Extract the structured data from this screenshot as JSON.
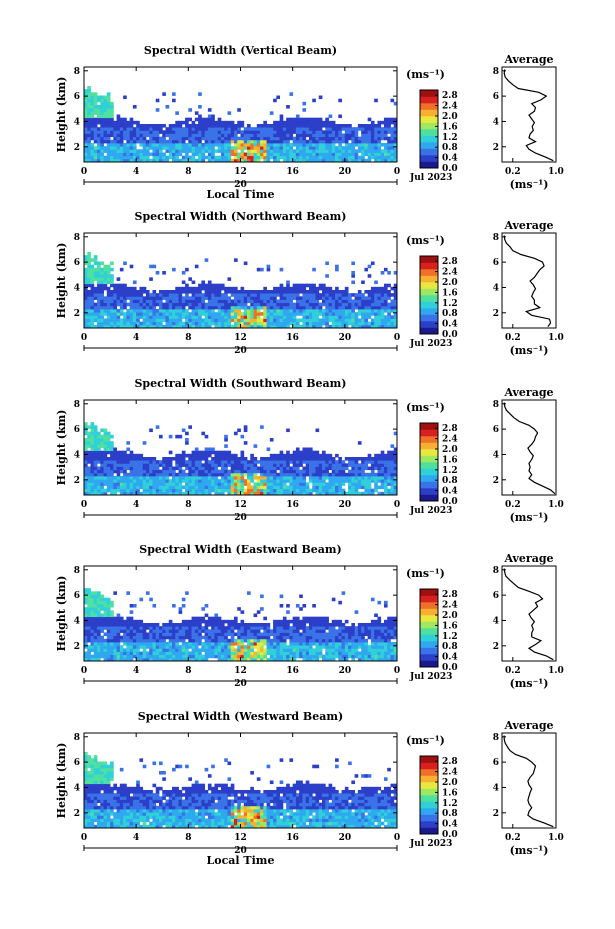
{
  "chart_data": [
    {
      "type": "heatmap",
      "title": "Spectral Width (Vertical Beam)",
      "ylabel": "Height (km)",
      "xlabel": "Local Time",
      "xticks": [
        "0",
        "4",
        "8",
        "12",
        "16",
        "20",
        "0"
      ],
      "xlim": [
        0,
        24
      ],
      "yticks": [
        "2",
        "4",
        "6",
        "8"
      ],
      "ylim": [
        0.8,
        8.3
      ],
      "date_day": "20",
      "date_label": "Jul 2023",
      "colorbar": {
        "unit": "(ms⁻¹)",
        "ticks": [
          "2.8",
          "2.4",
          "2.0",
          "1.6",
          "1.2",
          "0.8",
          "0.4",
          "0.0"
        ],
        "range": [
          0.0,
          3.0
        ]
      },
      "profile": {
        "title": "Average",
        "xlabel": "(ms⁻¹)",
        "xticks": [
          "0.2",
          "1.0"
        ],
        "xlim": [
          0.0,
          1.0
        ],
        "yticks": [
          "2",
          "4",
          "6",
          "8"
        ],
        "ylim": [
          0.8,
          8.3
        ],
        "height": [
          0.9,
          1.2,
          1.5,
          1.8,
          2.1,
          2.4,
          2.7,
          3.0,
          3.3,
          3.6,
          3.9,
          4.2,
          4.5,
          4.8,
          5.1,
          5.4,
          5.7,
          6.0,
          6.3,
          6.6,
          6.9,
          7.2,
          7.5,
          7.8,
          8.1
        ],
        "values": [
          0.95,
          0.8,
          0.62,
          0.5,
          0.45,
          0.62,
          0.5,
          0.52,
          0.58,
          0.56,
          0.6,
          0.55,
          0.5,
          0.6,
          0.62,
          0.55,
          0.72,
          0.82,
          0.68,
          0.3,
          0.2,
          0.12,
          0.06,
          0.04,
          0.05
        ]
      }
    },
    {
      "type": "heatmap",
      "title": "Spectral Width (Northward Beam)",
      "ylabel": "Height (km)",
      "xticks": [
        "0",
        "4",
        "8",
        "12",
        "16",
        "20",
        "0"
      ],
      "xlim": [
        0,
        24
      ],
      "yticks": [
        "2",
        "4",
        "6",
        "8"
      ],
      "ylim": [
        0.8,
        8.3
      ],
      "date_day": "20",
      "date_label": "Jul 2023",
      "colorbar": {
        "unit": "(ms⁻¹)",
        "ticks": [
          "2.8",
          "2.4",
          "2.0",
          "1.6",
          "1.2",
          "0.8",
          "0.4",
          "0.0"
        ],
        "range": [
          0.0,
          3.0
        ]
      },
      "profile": {
        "title": "Average",
        "xlabel": "(ms⁻¹)",
        "xticks": [
          "0.2",
          "1.0"
        ],
        "xlim": [
          0.0,
          1.0
        ],
        "yticks": [
          "2",
          "4",
          "6",
          "8"
        ],
        "ylim": [
          0.8,
          8.3
        ],
        "height": [
          0.9,
          1.2,
          1.5,
          1.8,
          2.1,
          2.4,
          2.7,
          3.0,
          3.3,
          3.6,
          3.9,
          4.2,
          4.5,
          4.8,
          5.1,
          5.4,
          5.7,
          6.0,
          6.3,
          6.6,
          6.9,
          7.2,
          7.5,
          7.8,
          8.1
        ],
        "values": [
          0.85,
          0.9,
          0.88,
          0.55,
          0.45,
          0.7,
          0.6,
          0.6,
          0.55,
          0.58,
          0.62,
          0.58,
          0.52,
          0.6,
          0.65,
          0.7,
          0.78,
          0.75,
          0.6,
          0.35,
          0.2,
          0.15,
          0.08,
          0.05,
          0.04
        ]
      }
    },
    {
      "type": "heatmap",
      "title": "Spectral Width (Southward Beam)",
      "ylabel": "Height (km)",
      "xticks": [
        "0",
        "4",
        "8",
        "12",
        "16",
        "20",
        "0"
      ],
      "xlim": [
        0,
        24
      ],
      "yticks": [
        "2",
        "4",
        "6",
        "8"
      ],
      "ylim": [
        0.8,
        8.3
      ],
      "date_day": "20",
      "date_label": "Jul 2023",
      "colorbar": {
        "unit": "(ms⁻¹)",
        "ticks": [
          "2.8",
          "2.4",
          "2.0",
          "1.6",
          "1.2",
          "0.8",
          "0.4",
          "0.0"
        ],
        "range": [
          0.0,
          3.0
        ]
      },
      "profile": {
        "title": "Average",
        "xlabel": "(ms⁻¹)",
        "xticks": [
          "0.2",
          "1.0"
        ],
        "xlim": [
          0.0,
          1.0
        ],
        "yticks": [
          "2",
          "4",
          "6",
          "8"
        ],
        "ylim": [
          0.8,
          8.3
        ],
        "height": [
          0.9,
          1.2,
          1.5,
          1.8,
          2.1,
          2.4,
          2.7,
          3.0,
          3.3,
          3.6,
          3.9,
          4.2,
          4.5,
          4.8,
          5.1,
          5.4,
          5.7,
          6.0,
          6.3,
          6.6,
          6.9,
          7.2,
          7.5,
          7.8,
          8.1
        ],
        "values": [
          0.98,
          0.9,
          0.75,
          0.6,
          0.5,
          0.55,
          0.5,
          0.52,
          0.5,
          0.55,
          0.58,
          0.52,
          0.48,
          0.55,
          0.6,
          0.62,
          0.66,
          0.6,
          0.5,
          0.32,
          0.22,
          0.15,
          0.08,
          0.05,
          0.04
        ]
      }
    },
    {
      "type": "heatmap",
      "title": "Spectral Width (Eastward Beam)",
      "ylabel": "Height (km)",
      "xticks": [
        "0",
        "4",
        "8",
        "12",
        "16",
        "20",
        "0"
      ],
      "xlim": [
        0,
        24
      ],
      "yticks": [
        "2",
        "4",
        "6",
        "8"
      ],
      "ylim": [
        0.8,
        8.3
      ],
      "date_day": "20",
      "date_label": "Jul 2023",
      "colorbar": {
        "unit": "(ms⁻¹)",
        "ticks": [
          "2.8",
          "2.4",
          "2.0",
          "1.6",
          "1.2",
          "0.8",
          "0.4",
          "0.0"
        ],
        "range": [
          0.0,
          3.0
        ]
      },
      "profile": {
        "title": "Average",
        "xlabel": "(ms⁻¹)",
        "xticks": [
          "0.2",
          "1.0"
        ],
        "xlim": [
          0.0,
          1.0
        ],
        "yticks": [
          "2",
          "4",
          "6",
          "8"
        ],
        "ylim": [
          0.8,
          8.3
        ],
        "height": [
          0.9,
          1.2,
          1.5,
          1.8,
          2.1,
          2.4,
          2.7,
          3.0,
          3.3,
          3.6,
          3.9,
          4.2,
          4.5,
          4.8,
          5.1,
          5.4,
          5.7,
          6.0,
          6.3,
          6.6,
          6.9,
          7.2,
          7.5,
          7.8,
          8.1
        ],
        "values": [
          0.95,
          0.82,
          0.6,
          0.5,
          0.62,
          0.72,
          0.55,
          0.55,
          0.58,
          0.55,
          0.6,
          0.54,
          0.5,
          0.58,
          0.66,
          0.62,
          0.75,
          0.68,
          0.5,
          0.3,
          0.22,
          0.14,
          0.07,
          0.05,
          0.04
        ]
      }
    },
    {
      "type": "heatmap",
      "title": "Spectral Width (Westward Beam)",
      "ylabel": "Height (km)",
      "xlabel": "Local Time",
      "xticks": [
        "0",
        "4",
        "8",
        "12",
        "16",
        "20",
        "0"
      ],
      "xlim": [
        0,
        24
      ],
      "yticks": [
        "2",
        "4",
        "6",
        "8"
      ],
      "ylim": [
        0.8,
        8.3
      ],
      "date_day": "20",
      "date_label": "Jul 2023",
      "colorbar": {
        "unit": "(ms⁻¹)",
        "ticks": [
          "2.8",
          "2.4",
          "2.0",
          "1.6",
          "1.2",
          "0.8",
          "0.4",
          "0.0"
        ],
        "range": [
          0.0,
          3.0
        ]
      },
      "profile": {
        "title": "Average",
        "xlabel": "(ms⁻¹)",
        "xticks": [
          "0.2",
          "1.0"
        ],
        "xlim": [
          0.0,
          1.0
        ],
        "yticks": [
          "2",
          "4",
          "6",
          "8"
        ],
        "ylim": [
          0.8,
          8.3
        ],
        "height": [
          0.9,
          1.2,
          1.5,
          1.8,
          2.1,
          2.4,
          2.7,
          3.0,
          3.3,
          3.6,
          3.9,
          4.2,
          4.5,
          4.8,
          5.1,
          5.4,
          5.7,
          6.0,
          6.3,
          6.6,
          6.9,
          7.2,
          7.5,
          7.8,
          8.1
        ],
        "values": [
          0.95,
          0.78,
          0.58,
          0.48,
          0.5,
          0.55,
          0.5,
          0.48,
          0.5,
          0.52,
          0.55,
          0.5,
          0.48,
          0.52,
          0.58,
          0.6,
          0.62,
          0.55,
          0.45,
          0.25,
          0.15,
          0.1,
          0.06,
          0.04,
          0.04
        ]
      }
    }
  ],
  "colormap": [
    "#1a1a8c",
    "#2c3fc9",
    "#3a72e8",
    "#2fa8f0",
    "#30d0d8",
    "#4fe0a0",
    "#9fe860",
    "#e8e840",
    "#f8b030",
    "#f07028",
    "#d82020",
    "#a01010"
  ]
}
